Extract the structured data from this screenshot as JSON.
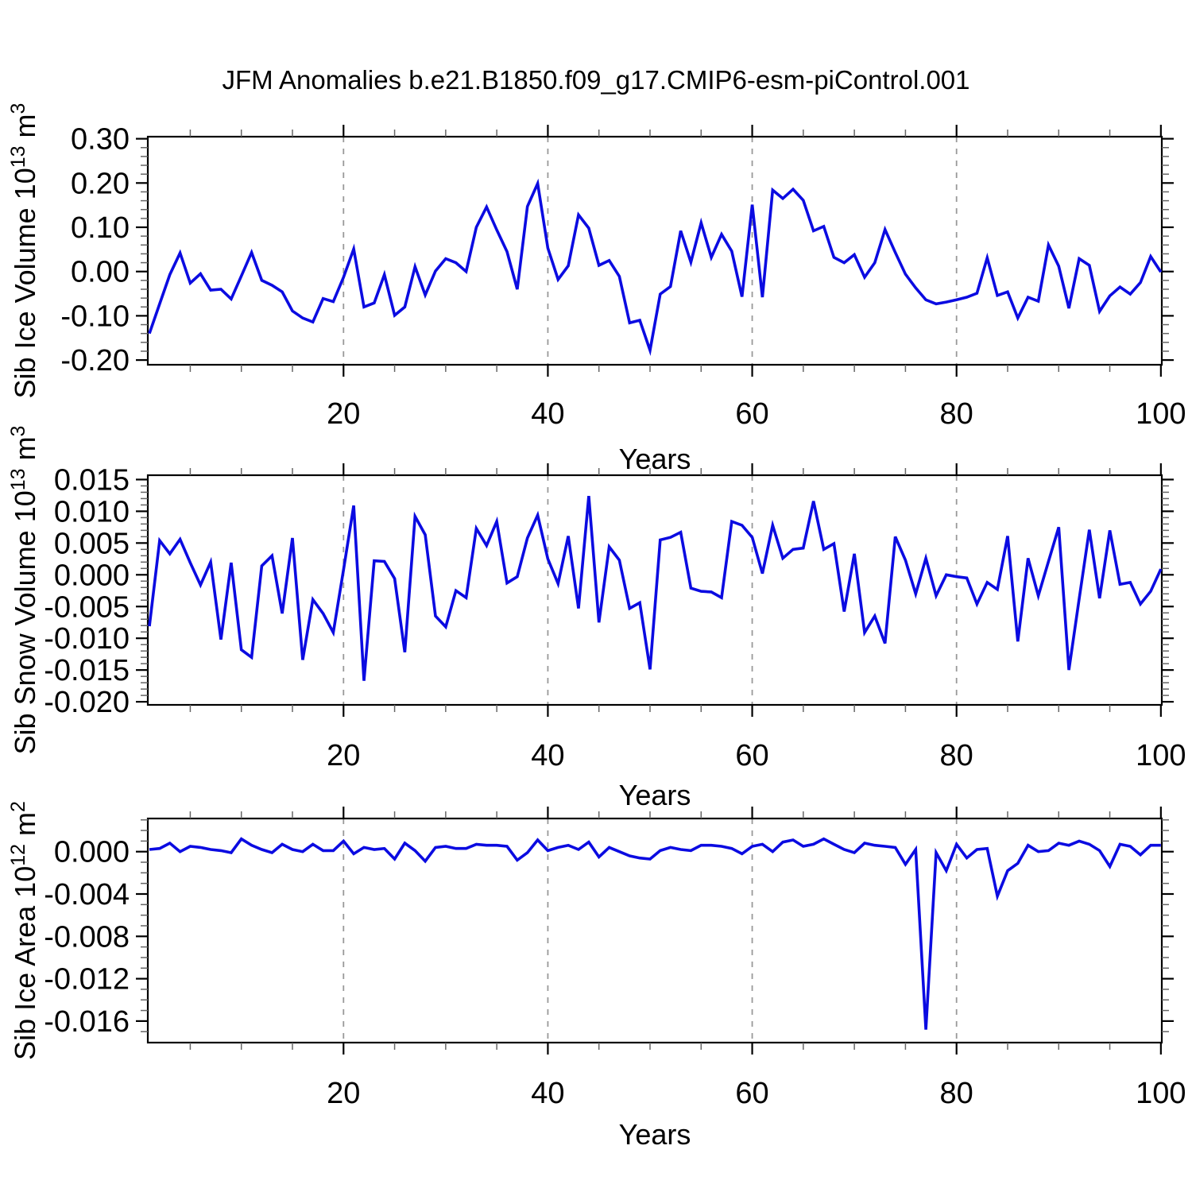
{
  "title": "JFM Anomalies b.e21.B1850.f09_g17.CMIP6-esm-piControl.001",
  "colors": {
    "line": "#0b0be1",
    "frame": "#000000",
    "minor_tick": "#666666",
    "gridline": "#999999",
    "background": "#ffffff"
  },
  "chart_data": [
    {
      "type": "line",
      "title": "",
      "xlabel": "Years",
      "ylabel": "Sib Ice Volume 10^13 m^3",
      "ylabel_parts": [
        {
          "t": "Sib Ice Volume 10"
        },
        {
          "t": "13",
          "sup": true
        },
        {
          "t": " m"
        },
        {
          "t": "3",
          "sup": true
        }
      ],
      "xlim": [
        1,
        100
      ],
      "ylim": [
        -0.2,
        0.3
      ],
      "xticks": {
        "values": [
          20,
          40,
          60,
          80,
          100
        ],
        "labels": [
          "20",
          "40",
          "60",
          "80",
          "100"
        ]
      },
      "yticks": {
        "values": [
          0.3,
          0.2,
          0.1,
          0.0,
          -0.1,
          -0.2
        ],
        "labels": [
          "0.30",
          "0.20",
          "0.10",
          "0.00",
          "-0.10",
          "-0.20"
        ]
      },
      "x_minor_step": 5,
      "y_minor_step": 0.02,
      "gridlines_x": [
        20,
        40,
        60,
        80
      ],
      "grid": "vertical-dashed",
      "legend": "none",
      "x_start": 1,
      "x_step": 1,
      "values": [
        -0.14,
        -0.073,
        -0.007,
        0.042,
        -0.026,
        -0.005,
        -0.042,
        -0.04,
        -0.062,
        -0.01,
        0.043,
        -0.02,
        -0.031,
        -0.046,
        -0.089,
        -0.105,
        -0.114,
        -0.061,
        -0.068,
        -0.013,
        0.051,
        -0.08,
        -0.071,
        -0.007,
        -0.099,
        -0.08,
        0.011,
        -0.053,
        0.001,
        0.029,
        0.02,
        0.0,
        0.1,
        0.146,
        0.094,
        0.045,
        -0.04,
        0.147,
        0.199,
        0.053,
        -0.018,
        0.013,
        0.128,
        0.098,
        0.014,
        0.025,
        -0.011,
        -0.116,
        -0.11,
        -0.178,
        -0.051,
        -0.034,
        0.092,
        0.021,
        0.11,
        0.032,
        0.084,
        0.046,
        -0.057,
        0.151,
        -0.058,
        0.184,
        0.165,
        0.186,
        0.161,
        0.092,
        0.102,
        0.032,
        0.02,
        0.038,
        -0.013,
        0.02,
        0.095,
        0.043,
        -0.006,
        -0.037,
        -0.064,
        -0.073,
        -0.069,
        -0.064,
        -0.058,
        -0.049,
        0.031,
        -0.054,
        -0.046,
        -0.105,
        -0.058,
        -0.067,
        0.06,
        0.012,
        -0.083,
        0.029,
        0.014,
        -0.09,
        -0.055,
        -0.035,
        -0.051,
        -0.025,
        0.034,
        -0.001
      ]
    },
    {
      "type": "line",
      "title": "",
      "xlabel": "Years",
      "ylabel": "Sib Snow Volume 10^13 m^3",
      "ylabel_parts": [
        {
          "t": "Sib Snow Volume 10"
        },
        {
          "t": "13",
          "sup": true
        },
        {
          "t": " m"
        },
        {
          "t": "3",
          "sup": true
        }
      ],
      "xlim": [
        1,
        100
      ],
      "ylim": [
        -0.02,
        0.015
      ],
      "xticks": {
        "values": [
          20,
          40,
          60,
          80,
          100
        ],
        "labels": [
          "20",
          "40",
          "60",
          "80",
          "100"
        ]
      },
      "yticks": {
        "values": [
          0.015,
          0.01,
          0.005,
          0.0,
          -0.005,
          -0.01,
          -0.015,
          -0.02
        ],
        "labels": [
          "0.015",
          "0.010",
          "0.005",
          "0.000",
          "-0.005",
          "-0.010",
          "-0.015",
          "-0.020"
        ]
      },
      "x_minor_step": 5,
      "y_minor_step": 0.001,
      "gridlines_x": [
        20,
        40,
        60,
        80
      ],
      "grid": "vertical-dashed",
      "legend": "none",
      "x_start": 1,
      "x_step": 1,
      "values": [
        -0.0081,
        0.0054,
        0.0033,
        0.0056,
        0.0019,
        -0.0016,
        0.002,
        -0.0102,
        0.0019,
        -0.0118,
        -0.013,
        0.0014,
        0.003,
        -0.0061,
        0.0058,
        -0.0134,
        -0.0039,
        -0.0061,
        -0.0091,
        0.0008,
        0.0109,
        -0.0167,
        0.0022,
        0.0021,
        -0.0006,
        -0.0122,
        0.0092,
        0.0063,
        -0.0065,
        -0.0082,
        -0.0025,
        -0.0036,
        0.0073,
        0.0046,
        0.0084,
        -0.0013,
        -0.0003,
        0.0058,
        0.0094,
        0.0025,
        -0.0014,
        0.0061,
        -0.0053,
        0.0124,
        -0.0075,
        0.0044,
        0.0023,
        -0.0053,
        -0.0044,
        -0.0149,
        0.0055,
        0.0059,
        0.0067,
        -0.0021,
        -0.0026,
        -0.0027,
        -0.0036,
        0.0084,
        0.0078,
        0.0059,
        0.0002,
        0.0078,
        0.0026,
        0.004,
        0.0042,
        0.0116,
        0.004,
        0.0049,
        -0.0058,
        0.0033,
        -0.0091,
        -0.0065,
        -0.0108,
        0.006,
        0.0023,
        -0.003,
        0.0026,
        -0.0033,
        0.0,
        -0.0003,
        -0.0005,
        -0.0046,
        -0.0012,
        -0.0023,
        0.0061,
        -0.0105,
        0.0026,
        -0.0033,
        0.0021,
        0.0075,
        -0.015,
        -0.0038,
        0.0071,
        -0.0037,
        0.007,
        -0.0015,
        -0.0012,
        -0.0046,
        -0.0026,
        0.0009
      ]
    },
    {
      "type": "line",
      "title": "",
      "xlabel": "Years",
      "ylabel": "Sib Ice Area 10^12 m^2",
      "ylabel_parts": [
        {
          "t": "Sib Ice Area 10"
        },
        {
          "t": "12",
          "sup": true
        },
        {
          "t": " m"
        },
        {
          "t": "2",
          "sup": true
        }
      ],
      "xlim": [
        1,
        100
      ],
      "ylim": [
        -0.018,
        0.003
      ],
      "xticks": {
        "values": [
          20,
          40,
          60,
          80,
          100
        ],
        "labels": [
          "20",
          "40",
          "60",
          "80",
          "100"
        ]
      },
      "yticks": {
        "values": [
          0.0,
          -0.004,
          -0.008,
          -0.012,
          -0.016
        ],
        "labels": [
          "0.000",
          "-0.004",
          "-0.008",
          "-0.012",
          "-0.016"
        ]
      },
      "x_minor_step": 5,
      "y_minor_step": 0.001,
      "gridlines_x": [
        20,
        40,
        60,
        80
      ],
      "grid": "vertical-dashed",
      "legend": "none",
      "x_start": 1,
      "x_step": 1,
      "values": [
        0.0002,
        0.0003,
        0.0008,
        0.0,
        0.0005,
        0.0004,
        0.0002,
        0.0001,
        -0.0001,
        0.0012,
        0.0006,
        0.0002,
        -0.0001,
        0.0007,
        0.0002,
        0.0,
        0.0007,
        0.0001,
        0.0001,
        0.001,
        -0.0002,
        0.0004,
        0.0002,
        0.0003,
        -0.0007,
        0.0008,
        0.0001,
        -0.0009,
        0.0004,
        0.0005,
        0.0003,
        0.0003,
        0.0007,
        0.0006,
        0.0006,
        0.0005,
        -0.0008,
        -0.0001,
        0.0011,
        0.0001,
        0.0004,
        0.0006,
        0.0002,
        0.0009,
        -0.0005,
        0.0004,
        0.0,
        -0.0004,
        -0.0006,
        -0.0007,
        0.0001,
        0.0004,
        0.0002,
        0.0001,
        0.0006,
        0.0006,
        0.0005,
        0.0003,
        -0.0002,
        0.0005,
        0.0007,
        0.0,
        0.0009,
        0.0011,
        0.0005,
        0.0007,
        0.0012,
        0.0007,
        0.0002,
        -0.0001,
        0.0008,
        0.0006,
        0.0005,
        0.0004,
        -0.0012,
        0.0002,
        -0.0168,
        -0.0001,
        -0.0018,
        0.0007,
        -0.0006,
        0.0002,
        0.0003,
        -0.0042,
        -0.0018,
        -0.0011,
        0.0006,
        0.0,
        0.0001,
        0.0008,
        0.0006,
        0.001,
        0.0007,
        0.0001,
        -0.0014,
        0.0007,
        0.0005,
        -0.0003,
        0.0006,
        0.0006
      ]
    }
  ]
}
